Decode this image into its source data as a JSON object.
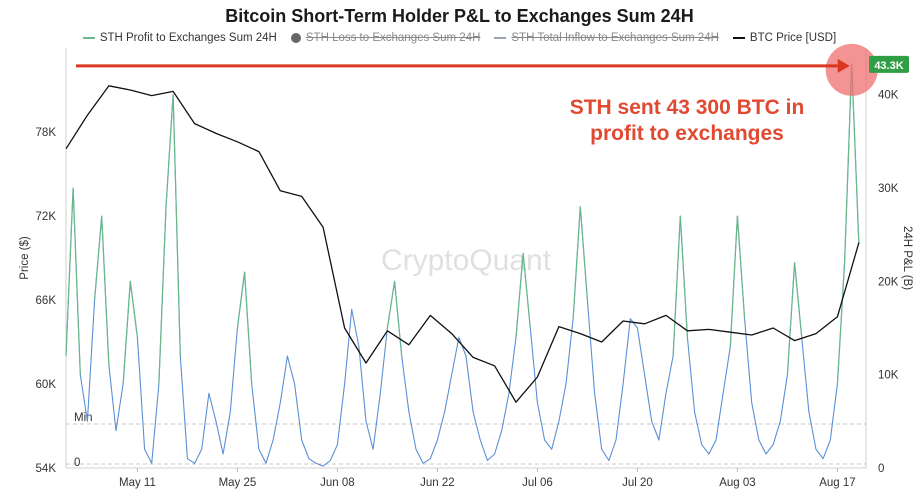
{
  "chart_data": {
    "type": "line",
    "title": "Bitcoin Short-Term Holder P&L to Exchanges Sum 24H",
    "legend": [
      {
        "name": "STH Profit to Exchanges Sum 24H",
        "color": "#6ab88a",
        "marker": "line",
        "active": true
      },
      {
        "name": "STH Loss to Exchanges Sum 24H",
        "color": "#666666",
        "marker": "dot",
        "active": false
      },
      {
        "name": "STH Total Inflow to Exchanges Sum 24H",
        "color": "#9aa4b0",
        "marker": "line",
        "active": false
      },
      {
        "name": "BTC Price [USD]",
        "color": "#111111",
        "marker": "line",
        "active": true
      }
    ],
    "ylabel_left": "Price ($)",
    "ylabel_right": "24H P&L (B)",
    "left_ticks": [
      "54K",
      "60K",
      "66K",
      "72K",
      "78K"
    ],
    "right_ticks": [
      "0",
      "10K",
      "20K",
      "30K",
      "40K"
    ],
    "x_ticks": [
      "May 11",
      "May 25",
      "Jun 08",
      "Jun 22",
      "Jul 06",
      "Jul 20",
      "Aug 03",
      "Aug 17"
    ],
    "ylim_left": [
      54000,
      84000
    ],
    "ylim_right": [
      0,
      45000
    ],
    "min_label": "Min",
    "zero_label": "0",
    "watermark": "CryptoQuant",
    "price": {
      "name": "BTC Price [USD]",
      "x": [
        "May 01",
        "May 04",
        "May 07",
        "May 10",
        "May 13",
        "May 16",
        "May 19",
        "May 22",
        "May 25",
        "May 28",
        "May 31",
        "Jun 03",
        "Jun 06",
        "Jun 09",
        "Jun 12",
        "Jun 15",
        "Jun 18",
        "Jun 21",
        "Jun 24",
        "Jun 27",
        "Jun 30",
        "Jul 03",
        "Jul 06",
        "Jul 09",
        "Jul 12",
        "Jul 15",
        "Jul 18",
        "Jul 21",
        "Jul 24",
        "Jul 27",
        "Jul 30",
        "Aug 02",
        "Aug 05",
        "Aug 08",
        "Aug 11",
        "Aug 14",
        "Aug 17",
        "Aug 20"
      ],
      "values": [
        76800,
        79200,
        81300,
        81000,
        80600,
        80900,
        78600,
        77900,
        77300,
        76600,
        73800,
        73400,
        71200,
        64000,
        61500,
        63800,
        62800,
        64900,
        63600,
        61900,
        61300,
        58700,
        60500,
        64100,
        63600,
        63000,
        64500,
        64300,
        64900,
        63800,
        63900,
        63700,
        63500,
        64000,
        63100,
        63600,
        64800,
        70100
      ]
    },
    "profit": {
      "name": "STH Profit to Exchanges Sum 24H",
      "x": [
        "May 01",
        "May 02",
        "May 03",
        "May 04",
        "May 05",
        "May 06",
        "May 07",
        "May 08",
        "May 09",
        "May 10",
        "May 11",
        "May 12",
        "May 13",
        "May 14",
        "May 15",
        "May 16",
        "May 17",
        "May 18",
        "May 19",
        "May 20",
        "May 21",
        "May 22",
        "May 23",
        "May 24",
        "May 25",
        "May 26",
        "May 27",
        "May 28",
        "May 29",
        "May 30",
        "May 31",
        "Jun 01",
        "Jun 02",
        "Jun 03",
        "Jun 04",
        "Jun 05",
        "Jun 06",
        "Jun 07",
        "Jun 08",
        "Jun 09",
        "Jun 10",
        "Jun 11",
        "Jun 12",
        "Jun 13",
        "Jun 14",
        "Jun 15",
        "Jun 16",
        "Jun 17",
        "Jun 18",
        "Jun 19",
        "Jun 20",
        "Jun 21",
        "Jun 22",
        "Jun 23",
        "Jun 24",
        "Jun 25",
        "Jun 26",
        "Jun 27",
        "Jun 28",
        "Jun 29",
        "Jun 30",
        "Jul 01",
        "Jul 02",
        "Jul 03",
        "Jul 04",
        "Jul 05",
        "Jul 06",
        "Jul 07",
        "Jul 08",
        "Jul 09",
        "Jul 10",
        "Jul 11",
        "Jul 12",
        "Jul 13",
        "Jul 14",
        "Jul 15",
        "Jul 16",
        "Jul 17",
        "Jul 18",
        "Jul 19",
        "Jul 20",
        "Jul 21",
        "Jul 22",
        "Jul 23",
        "Jul 24",
        "Jul 25",
        "Jul 26",
        "Jul 27",
        "Jul 28",
        "Jul 29",
        "Jul 30",
        "Jul 31",
        "Aug 01",
        "Aug 02",
        "Aug 03",
        "Aug 04",
        "Aug 05",
        "Aug 06",
        "Aug 07",
        "Aug 08",
        "Aug 09",
        "Aug 10",
        "Aug 11",
        "Aug 12",
        "Aug 13",
        "Aug 14",
        "Aug 15",
        "Aug 16",
        "Aug 17",
        "Aug 18",
        "Aug 19",
        "Aug 20"
      ],
      "values": [
        12000,
        30000,
        10000,
        5000,
        18000,
        27000,
        11000,
        4000,
        9000,
        20000,
        14000,
        2000,
        500,
        9000,
        28000,
        40000,
        12000,
        1000,
        500,
        2000,
        8000,
        5000,
        1500,
        6000,
        15000,
        21000,
        9000,
        2000,
        500,
        3000,
        7000,
        12000,
        9000,
        3000,
        1000,
        500,
        200,
        800,
        2500,
        9000,
        17000,
        13000,
        5000,
        2000,
        8000,
        15000,
        20000,
        12000,
        6000,
        2000,
        500,
        1000,
        3000,
        6000,
        10000,
        14000,
        12000,
        6000,
        3000,
        800,
        1500,
        4000,
        8000,
        14000,
        23000,
        15000,
        7000,
        3000,
        2000,
        5000,
        9000,
        16000,
        28000,
        18000,
        8000,
        2000,
        800,
        3000,
        9000,
        16000,
        15000,
        10000,
        5000,
        3000,
        8000,
        12000,
        27000,
        14000,
        6000,
        2500,
        1500,
        3000,
        8000,
        13000,
        27000,
        16000,
        7000,
        3000,
        1500,
        2500,
        5000,
        10000,
        22000,
        14000,
        6000,
        2000,
        1000,
        3000,
        9000,
        22000,
        43300,
        24000
      ]
    },
    "peak": {
      "label": "43.3K",
      "value": 43300
    },
    "annotation": "STH sent 43 300 BTC in profit to exchanges"
  }
}
